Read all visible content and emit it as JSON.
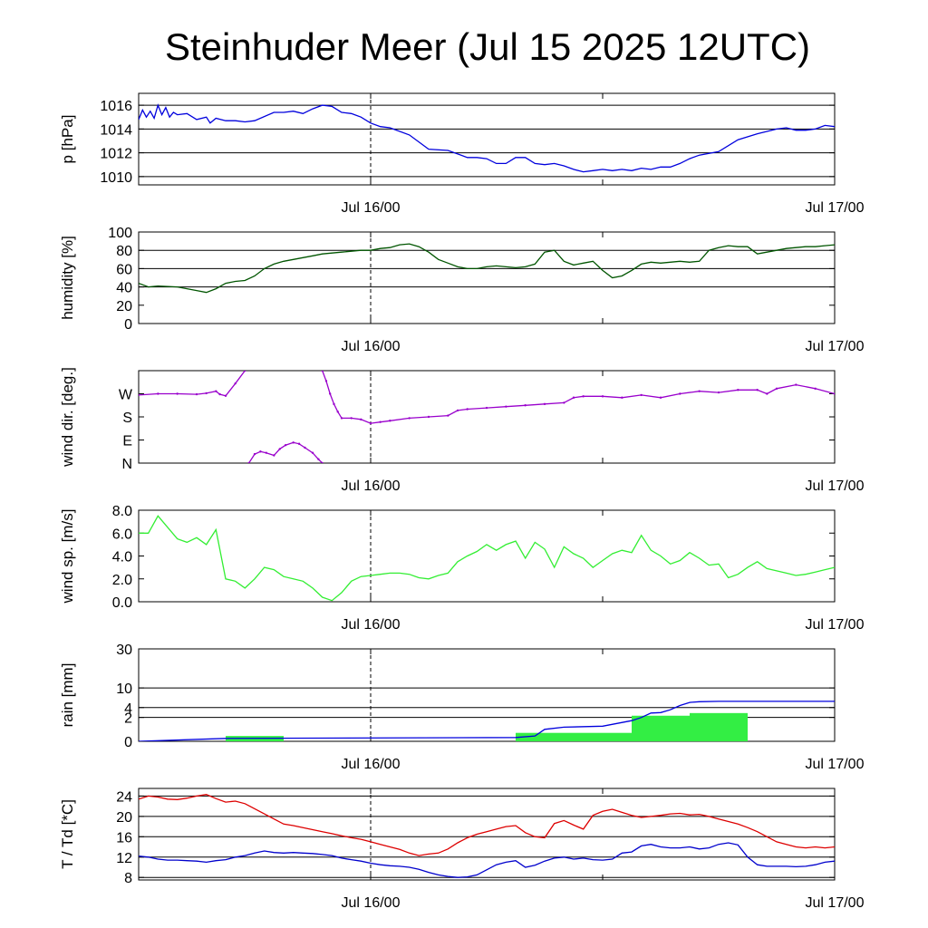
{
  "title": "Steinhuder Meer (Jul 15 2025 12UTC)",
  "time_axis": {
    "range_hours": [
      0,
      36
    ],
    "ticks": [
      {
        "hour": 12,
        "label": "Jul 16/00"
      },
      {
        "hour": 36,
        "label": "Jul 17/00"
      }
    ],
    "minor_tick_hours": [
      24
    ],
    "marker_hour": 12
  },
  "colors": {
    "pressure": "#0000dd",
    "humidity": "#005500",
    "wind_dir": "#9900cc",
    "wind_speed": "#33ee33",
    "rain_line": "#0000dd",
    "rain_bar": "#33ee44",
    "temperature": "#dd0000",
    "dewpoint": "#0000cc"
  },
  "chart_data": [
    {
      "type": "line",
      "name": "pressure",
      "ylabel": "p [hPa]",
      "ylim": [
        1009.3,
        1017.0
      ],
      "yticks": [
        1010,
        1012,
        1014,
        1016
      ],
      "gridlines": [
        1010,
        1012,
        1014,
        1016
      ],
      "x": [
        0,
        0.2,
        0.4,
        0.6,
        0.8,
        1.0,
        1.2,
        1.4,
        1.6,
        1.8,
        2.0,
        2.5,
        3,
        3.5,
        3.7,
        4,
        4.5,
        5,
        5.5,
        6,
        7,
        7.5,
        8,
        8.5,
        9,
        9.5,
        10,
        10.5,
        11,
        11.5,
        12,
        12.5,
        13,
        14,
        15,
        16,
        17,
        17.5,
        18,
        18.5,
        19,
        19.5,
        20,
        20.5,
        21,
        21.5,
        22,
        22.5,
        23,
        23.5,
        24,
        24.5,
        25,
        25.5,
        26,
        26.5,
        27,
        27.5,
        28,
        28.5,
        29,
        30,
        31,
        32,
        33,
        33.5,
        34,
        34.5,
        35,
        35.5,
        36
      ],
      "values": [
        1014.8,
        1015.6,
        1015.0,
        1015.5,
        1014.9,
        1016.0,
        1015.2,
        1015.8,
        1015.0,
        1015.4,
        1015.2,
        1015.3,
        1014.8,
        1015.0,
        1014.5,
        1014.9,
        1014.7,
        1014.7,
        1014.6,
        1014.7,
        1015.4,
        1015.4,
        1015.5,
        1015.3,
        1015.7,
        1016.0,
        1015.9,
        1015.4,
        1015.3,
        1015.0,
        1014.5,
        1014.2,
        1014.1,
        1013.5,
        1012.3,
        1012.2,
        1011.6,
        1011.6,
        1011.5,
        1011.1,
        1011.1,
        1011.6,
        1011.6,
        1011.1,
        1011.0,
        1011.1,
        1010.9,
        1010.6,
        1010.4,
        1010.5,
        1010.6,
        1010.5,
        1010.6,
        1010.5,
        1010.7,
        1010.6,
        1010.8,
        1010.8,
        1011.1,
        1011.5,
        1011.8,
        1012.1,
        1013.1,
        1013.6,
        1014.0,
        1014.1,
        1013.9,
        1013.9,
        1014.0,
        1014.3,
        1014.2
      ]
    },
    {
      "type": "line",
      "name": "humidity",
      "ylabel": "humidity [%]",
      "ylim": [
        0,
        100
      ],
      "yticks": [
        0,
        20,
        40,
        60,
        80,
        100
      ],
      "gridlines": [
        40,
        60,
        80
      ],
      "x": [
        0,
        0.5,
        1,
        2,
        3,
        3.5,
        4,
        4.5,
        5,
        5.5,
        6,
        6.5,
        7,
        7.5,
        8,
        8.5,
        9,
        9.5,
        10,
        10.5,
        11,
        11.5,
        12,
        12.5,
        13,
        13.5,
        14,
        14.5,
        15,
        15.5,
        16,
        16.5,
        17,
        17.5,
        18,
        18.5,
        19,
        19.5,
        20,
        20.5,
        21,
        21.5,
        22,
        22.5,
        23,
        23.5,
        24,
        24.5,
        25,
        25.5,
        26,
        26.5,
        27,
        27.5,
        28,
        28.5,
        29,
        29.5,
        30,
        30.5,
        31,
        31.5,
        32,
        32.5,
        33,
        33.5,
        34,
        34.5,
        35,
        35.5,
        36
      ],
      "values": [
        44,
        40,
        41,
        40,
        36,
        34,
        38,
        44,
        46,
        47,
        52,
        60,
        65,
        68,
        70,
        72,
        74,
        76,
        77,
        78,
        79,
        80,
        80,
        82,
        83,
        86,
        87,
        84,
        78,
        70,
        66,
        62,
        60,
        60,
        62,
        63,
        62,
        61,
        62,
        65,
        78,
        80,
        68,
        64,
        66,
        68,
        58,
        50,
        52,
        58,
        65,
        67,
        66,
        67,
        68,
        67,
        68,
        80,
        83,
        85,
        84,
        84,
        76,
        78,
        80,
        82,
        83,
        84,
        84,
        85,
        86
      ]
    },
    {
      "type": "scatter",
      "name": "wind direction",
      "ylabel": "wind dir. [deg.]",
      "ylim": [
        0,
        360
      ],
      "yticks": [
        0,
        90,
        180,
        270
      ],
      "ytick_labels": [
        "N",
        "E",
        "S",
        "W"
      ],
      "gridlines": [],
      "segments": [
        {
          "x": [
            0,
            1,
            2,
            3,
            3.5,
            4,
            4.2,
            4.5,
            5,
            5.5
          ],
          "values": [
            265,
            270,
            270,
            268,
            272,
            280,
            268,
            262,
            310,
            360
          ]
        },
        {
          "x": [
            9.5,
            9.7,
            9.9,
            10.1,
            10.3,
            10.5,
            11,
            11.5,
            12,
            12.5,
            13,
            14,
            15,
            16,
            16.5,
            17,
            18,
            19,
            20,
            21,
            22,
            22.5,
            23,
            24,
            25,
            26,
            27,
            28,
            29,
            30,
            31,
            32,
            32.5,
            33,
            34,
            35,
            36
          ],
          "values": [
            360,
            320,
            270,
            230,
            200,
            175,
            175,
            170,
            155,
            160,
            165,
            175,
            180,
            185,
            205,
            210,
            215,
            220,
            225,
            230,
            235,
            255,
            260,
            260,
            255,
            265,
            255,
            270,
            280,
            275,
            285,
            285,
            270,
            290,
            305,
            290,
            270
          ]
        },
        {
          "x": [
            5.7,
            6,
            6.3,
            6.6,
            7,
            7.3,
            7.6,
            8,
            8.3,
            8.6,
            9,
            9.3,
            9.5
          ],
          "values": [
            0,
            35,
            45,
            40,
            30,
            55,
            70,
            80,
            75,
            60,
            40,
            15,
            0
          ]
        }
      ]
    },
    {
      "type": "line",
      "name": "wind speed",
      "ylabel": "wind sp. [m/s]",
      "ylim": [
        0,
        8.0
      ],
      "yticks": [
        0.0,
        2.0,
        4.0,
        6.0,
        8.0
      ],
      "ytick_labels": [
        "0.0",
        "2.0",
        "4.0",
        "6.0",
        "8.0"
      ],
      "gridlines": [],
      "x": [
        0,
        0.5,
        1,
        1.5,
        2,
        2.5,
        3,
        3.5,
        4,
        4.5,
        5,
        5.5,
        6,
        6.5,
        7,
        7.5,
        8,
        8.5,
        9,
        9.5,
        10,
        10.5,
        11,
        11.5,
        12,
        12.5,
        13,
        13.5,
        14,
        14.5,
        15,
        15.5,
        16,
        16.5,
        17,
        17.5,
        18,
        18.5,
        19,
        19.5,
        20,
        20.5,
        21,
        21.5,
        22,
        22.5,
        23,
        23.5,
        24,
        24.5,
        25,
        25.5,
        26,
        26.5,
        27,
        27.5,
        28,
        28.5,
        29,
        29.5,
        30,
        30.5,
        31,
        31.5,
        32,
        32.5,
        33,
        33.5,
        34,
        34.5,
        35,
        35.5,
        36
      ],
      "values": [
        6.0,
        6.0,
        7.5,
        6.5,
        5.5,
        5.2,
        5.6,
        5.0,
        6.3,
        2.0,
        1.8,
        1.2,
        2.0,
        3.0,
        2.8,
        2.2,
        2.0,
        1.8,
        1.2,
        0.4,
        0.1,
        0.8,
        1.8,
        2.2,
        2.3,
        2.4,
        2.5,
        2.5,
        2.4,
        2.1,
        2.0,
        2.3,
        2.5,
        3.5,
        4.0,
        4.4,
        5.0,
        4.5,
        5.0,
        5.3,
        3.8,
        5.2,
        4.6,
        3.0,
        4.8,
        4.2,
        3.8,
        3.0,
        3.6,
        4.2,
        4.5,
        4.3,
        5.8,
        4.5,
        4.0,
        3.3,
        3.6,
        4.3,
        3.8,
        3.2,
        3.3,
        2.1,
        2.4,
        3.0,
        3.5,
        2.9,
        2.7,
        2.5,
        2.3,
        2.4,
        2.6,
        2.8,
        3.0
      ]
    },
    {
      "type": "bar",
      "name": "rain",
      "ylabel": "rain [mm]",
      "scale": "sqrt",
      "ylim": [
        0,
        30
      ],
      "yticks": [
        0,
        2,
        4,
        10,
        30
      ],
      "gridlines": [
        2,
        4,
        10,
        30
      ],
      "bars": [
        {
          "x0": 4.5,
          "x1": 7.5,
          "value": 0.1
        },
        {
          "x0": 19.5,
          "x1": 25.5,
          "value": 0.25
        },
        {
          "x0": 25.5,
          "x1": 28.5,
          "value": 2.3
        },
        {
          "x0": 28.5,
          "x1": 31.5,
          "value": 2.8
        }
      ],
      "cumulative": {
        "x": [
          0,
          4.5,
          19.5,
          20.5,
          21,
          22,
          24,
          25.5,
          26,
          26.5,
          27,
          27.5,
          28,
          28.5,
          29,
          30,
          31,
          32,
          36
        ],
        "values": [
          0,
          0.03,
          0.05,
          0.1,
          0.5,
          0.7,
          0.8,
          1.5,
          2.0,
          2.8,
          2.9,
          3.5,
          4.5,
          5.3,
          5.5,
          5.6,
          5.6,
          5.6,
          5.6
        ]
      }
    },
    {
      "type": "line",
      "name": "temperature / dewpoint",
      "ylabel": "T / Td [*C]",
      "ylim": [
        7.5,
        25.5
      ],
      "yticks": [
        8,
        12,
        16,
        20,
        24
      ],
      "gridlines": [
        8,
        12,
        16,
        20,
        24
      ],
      "series": [
        {
          "name": "T",
          "x": [
            0,
            0.5,
            1,
            1.5,
            2,
            2.5,
            3,
            3.5,
            4,
            4.5,
            5,
            5.5,
            6,
            6.5,
            7,
            7.5,
            8,
            8.5,
            9,
            9.5,
            10,
            10.5,
            11,
            11.5,
            12,
            12.5,
            13,
            13.5,
            14,
            14.5,
            15,
            15.5,
            16,
            16.5,
            17,
            17.5,
            18,
            18.5,
            19,
            19.5,
            20,
            20.5,
            21,
            21.5,
            22,
            22.5,
            23,
            23.5,
            24,
            24.5,
            25,
            25.5,
            26,
            26.5,
            27,
            27.5,
            28,
            28.5,
            29,
            29.5,
            30,
            30.5,
            31,
            31.5,
            32,
            32.5,
            33,
            33.5,
            34,
            34.5,
            35,
            35.5,
            36
          ],
          "values": [
            23.4,
            24.0,
            23.8,
            23.4,
            23.3,
            23.6,
            24.0,
            24.3,
            23.5,
            22.8,
            23.0,
            22.5,
            21.5,
            20.5,
            19.5,
            18.5,
            18.2,
            17.8,
            17.4,
            17.0,
            16.6,
            16.2,
            15.8,
            15.5,
            15.0,
            14.5,
            14.0,
            13.5,
            12.8,
            12.3,
            12.6,
            12.8,
            13.6,
            14.8,
            15.8,
            16.5,
            17.0,
            17.5,
            18.0,
            18.2,
            16.8,
            16.0,
            15.8,
            18.6,
            19.2,
            18.3,
            17.5,
            20.2,
            21.0,
            21.4,
            20.8,
            20.2,
            19.8,
            20.0,
            20.2,
            20.5,
            20.6,
            20.3,
            20.4,
            20.0,
            19.5,
            19.0,
            18.5,
            17.8,
            17.0,
            16.0,
            15.0,
            14.5,
            14.0,
            13.8,
            14.0,
            13.8,
            14.0
          ]
        },
        {
          "name": "Td",
          "x": [
            0,
            0.5,
            1,
            1.5,
            2,
            2.5,
            3,
            3.5,
            4,
            4.5,
            5,
            5.5,
            6,
            6.5,
            7,
            7.5,
            8,
            8.5,
            9,
            9.5,
            10,
            10.5,
            11,
            11.5,
            12,
            12.5,
            13,
            13.5,
            14,
            14.5,
            15,
            15.5,
            16,
            16.5,
            17,
            17.5,
            18,
            18.5,
            19,
            19.5,
            20,
            20.5,
            21,
            21.5,
            22,
            22.5,
            23,
            23.5,
            24,
            24.5,
            25,
            25.5,
            26,
            26.5,
            27,
            27.5,
            28,
            28.5,
            29,
            29.5,
            30,
            30.5,
            31,
            31.5,
            32,
            32.5,
            33,
            33.5,
            34,
            34.5,
            35,
            35.5,
            36
          ],
          "values": [
            12.2,
            12.0,
            11.6,
            11.4,
            11.4,
            11.3,
            11.2,
            11.0,
            11.3,
            11.5,
            12.0,
            12.3,
            12.8,
            13.2,
            12.9,
            12.8,
            12.9,
            12.8,
            12.7,
            12.5,
            12.3,
            11.8,
            11.5,
            11.2,
            10.8,
            10.5,
            10.3,
            10.2,
            10.0,
            9.6,
            9.0,
            8.5,
            8.2,
            8.0,
            8.1,
            8.5,
            9.5,
            10.5,
            11.0,
            11.3,
            10.0,
            10.4,
            11.2,
            11.8,
            12.0,
            11.6,
            11.8,
            11.5,
            11.4,
            11.6,
            12.8,
            13.0,
            14.2,
            14.5,
            14.0,
            13.8,
            13.8,
            14.0,
            13.6,
            13.8,
            14.5,
            14.8,
            14.4,
            12.0,
            10.5,
            10.2,
            10.2,
            10.2,
            10.1,
            10.2,
            10.5,
            11.0,
            11.2
          ]
        }
      ]
    }
  ]
}
